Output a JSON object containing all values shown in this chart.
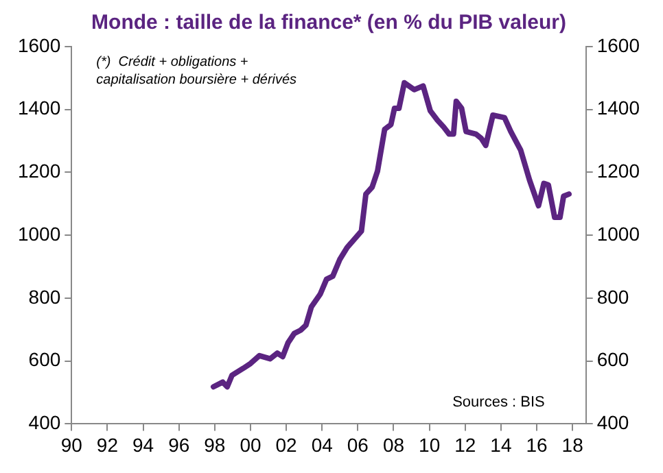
{
  "chart_data": {
    "type": "line",
    "title": "Monde : taille de la finance* (en % du PIB valeur)",
    "x": [
      1997.93,
      1998.45,
      1998.7,
      1998.97,
      1999.6,
      2000.0,
      2000.5,
      2001.1,
      2001.5,
      2001.8,
      2002.1,
      2002.45,
      2002.8,
      2003.1,
      2003.4,
      2003.9,
      2004.25,
      2004.6,
      2005.0,
      2005.4,
      2006.2,
      2006.45,
      2006.8,
      2007.1,
      2007.5,
      2007.85,
      2008.05,
      2008.3,
      2008.6,
      2009.15,
      2009.65,
      2010.05,
      2010.45,
      2010.8,
      2011.1,
      2011.35,
      2011.5,
      2011.8,
      2012.05,
      2012.6,
      2012.9,
      2013.15,
      2013.55,
      2014.2,
      2014.55,
      2015.1,
      2015.6,
      2016.1,
      2016.4,
      2016.65,
      2017.0,
      2017.3,
      2017.5,
      2017.8
    ],
    "series": [
      {
        "color": "#5b2481",
        "values": [
          518,
          533,
          518,
          555,
          577,
          592,
          617,
          607,
          625,
          614,
          658,
          688,
          698,
          714,
          772,
          813,
          860,
          870,
          924,
          961,
          1013,
          1131,
          1153,
          1204,
          1337,
          1352,
          1404,
          1404,
          1485,
          1463,
          1475,
          1396,
          1366,
          1344,
          1322,
          1322,
          1426,
          1404,
          1330,
          1322,
          1308,
          1286,
          1382,
          1374,
          1330,
          1271,
          1175,
          1094,
          1165,
          1160,
          1057,
          1057,
          1124,
          1131
        ]
      }
    ],
    "xlim": [
      1990,
      2018.75
    ],
    "xticks": [
      {
        "value": 1990,
        "label": "90"
      },
      {
        "value": 1992,
        "label": "92"
      },
      {
        "value": 1994,
        "label": "94"
      },
      {
        "value": 1996,
        "label": "96"
      },
      {
        "value": 1998,
        "label": "98"
      },
      {
        "value": 2000,
        "label": "00"
      },
      {
        "value": 2002,
        "label": "02"
      },
      {
        "value": 2004,
        "label": "04"
      },
      {
        "value": 2006,
        "label": "06"
      },
      {
        "value": 2008,
        "label": "08"
      },
      {
        "value": 2010,
        "label": "10"
      },
      {
        "value": 2012,
        "label": "12"
      },
      {
        "value": 2014,
        "label": "14"
      },
      {
        "value": 2016,
        "label": "16"
      },
      {
        "value": 2018,
        "label": "18"
      }
    ],
    "ylim": [
      400,
      1600
    ],
    "yticks": [
      400,
      600,
      800,
      1000,
      1200,
      1400,
      1600
    ],
    "y2lim": [
      400,
      1600
    ],
    "y2ticks": [
      400,
      600,
      800,
      1000,
      1200,
      1400,
      1600
    ],
    "grid": false,
    "legend": false,
    "marker": "none",
    "line_style": "solid",
    "annotations": [
      "(*)  Crédit + obligations +\ncapitalisation boursière + dérivés",
      "Sources : BIS"
    ]
  }
}
